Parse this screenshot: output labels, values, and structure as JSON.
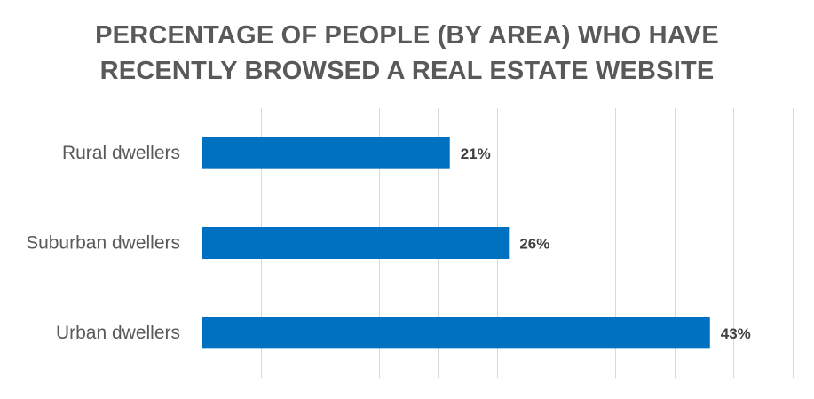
{
  "chart_data": {
    "type": "bar",
    "orientation": "horizontal",
    "title_lines": [
      "PERCENTAGE OF PEOPLE (BY AREA) WHO HAVE",
      "RECENTLY BROWSED A REAL ESTATE WEBSITE"
    ],
    "categories": [
      "Rural dwellers",
      "Suburban dwellers",
      "Urban dwellers"
    ],
    "values": [
      21,
      26,
      43
    ],
    "data_labels": [
      "21%",
      "26%",
      "43%"
    ],
    "xlim": [
      0,
      50
    ],
    "xtick_step": 5,
    "grid": "vertical",
    "bar_color": "#0070C0",
    "grid_color": "#D9D9D9"
  }
}
